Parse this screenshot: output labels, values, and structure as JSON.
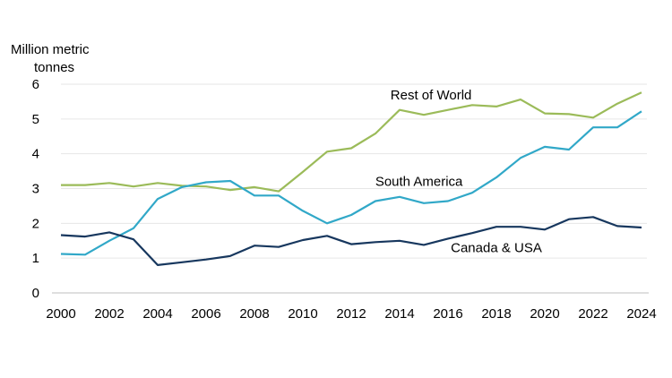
{
  "chart_data": {
    "type": "line",
    "title": "",
    "xlabel": "",
    "ylabel_lines": [
      "Million metric",
      "tonnes"
    ],
    "x": [
      2000,
      2001,
      2002,
      2003,
      2004,
      2005,
      2006,
      2007,
      2008,
      2009,
      2010,
      2011,
      2012,
      2013,
      2014,
      2015,
      2016,
      2017,
      2018,
      2019,
      2020,
      2021,
      2022,
      2023,
      2024
    ],
    "xticks": [
      "2000",
      "2002",
      "2004",
      "2006",
      "2008",
      "2010",
      "2012",
      "2014",
      "2016",
      "2018",
      "2020",
      "2022",
      "2024"
    ],
    "yticks": [
      "0",
      "1",
      "2",
      "3",
      "4",
      "5",
      "6"
    ],
    "ylim": [
      0,
      6
    ],
    "grid": "horizontal",
    "series": [
      {
        "name": "Rest of World",
        "color": "#9bbb59",
        "values": [
          3.1,
          3.1,
          3.16,
          3.06,
          3.16,
          3.08,
          3.06,
          2.96,
          3.04,
          2.92,
          3.48,
          4.06,
          4.16,
          4.58,
          5.26,
          5.12,
          5.26,
          5.4,
          5.36,
          5.56,
          5.16,
          5.14,
          5.04,
          5.44,
          5.76
        ]
      },
      {
        "name": "South America",
        "color": "#31a8c8",
        "values": [
          1.12,
          1.1,
          1.5,
          1.86,
          2.7,
          3.04,
          3.18,
          3.22,
          2.8,
          2.8,
          2.36,
          2.0,
          2.24,
          2.64,
          2.76,
          2.58,
          2.64,
          2.88,
          3.32,
          3.88,
          4.2,
          4.12,
          4.76,
          4.76,
          5.22
        ]
      },
      {
        "name": "Canada & USA",
        "color": "#17375e",
        "values": [
          1.66,
          1.62,
          1.74,
          1.54,
          0.8,
          0.88,
          0.96,
          1.06,
          1.36,
          1.32,
          1.52,
          1.64,
          1.4,
          1.46,
          1.5,
          1.38,
          1.56,
          1.72,
          1.9,
          1.9,
          1.82,
          2.12,
          2.18,
          1.92,
          1.88
        ]
      }
    ]
  }
}
